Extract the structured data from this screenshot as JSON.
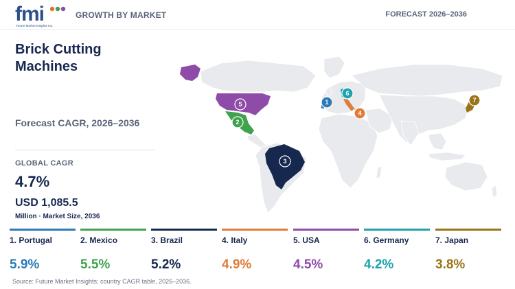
{
  "brand": {
    "logo_text": "fmi",
    "logo_subtitle": "Future Market Insights Inc."
  },
  "header": {
    "section": "GROWTH BY MARKET",
    "forecast": "FORECAST 2026–2036"
  },
  "title": "Brick Cutting Machines",
  "subtitle": "Forecast CAGR, 2026–2036",
  "global": {
    "label": "GLOBAL CAGR",
    "cagr": "4.7%",
    "market_size": "USD 1,085.5",
    "market_note": "Million · Market Size, 2036"
  },
  "colors": {
    "portugal": "#2c7bb6",
    "mexico": "#3fa34d",
    "brazil": "#17284f",
    "italy": "#e07b39",
    "usa": "#8e4ba8",
    "germany": "#1fa2b0",
    "japan": "#9a7418",
    "land": "#e8eaed"
  },
  "countries": [
    {
      "rank": "1",
      "label": "1. Portugal",
      "cagr": "5.9%",
      "color": "#2c7bb6"
    },
    {
      "rank": "2",
      "label": "2. Mexico",
      "cagr": "5.5%",
      "color": "#3fa34d"
    },
    {
      "rank": "3",
      "label": "3. Brazil",
      "cagr": "5.2%",
      "color": "#17284f"
    },
    {
      "rank": "4",
      "label": "4. Italy",
      "cagr": "4.9%",
      "color": "#e07b39"
    },
    {
      "rank": "5",
      "label": "5. USA",
      "cagr": "4.5%",
      "color": "#8e4ba8"
    },
    {
      "rank": "6",
      "label": "6. Germany",
      "cagr": "4.2%",
      "color": "#1fa2b0"
    },
    {
      "rank": "7",
      "label": "7. Japan",
      "cagr": "3.8%",
      "color": "#9a7418"
    }
  ],
  "source": "Source: Future Market Insights; country CAGR table, 2026–2036."
}
